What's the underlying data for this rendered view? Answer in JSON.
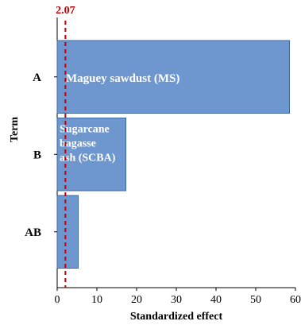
{
  "chart_data": {
    "type": "bar",
    "orientation": "horizontal",
    "categories": [
      "A",
      "B",
      "AB"
    ],
    "values": [
      58.5,
      17.3,
      5.3
    ],
    "bar_labels": [
      "Maguey sawdust (MS)",
      "Sugarcane bagasse ash (SCBA)",
      ""
    ],
    "xlabel": "Standardized effect",
    "ylabel": "Term",
    "xlim": [
      0,
      60
    ],
    "xticks": [
      "0",
      "10",
      "20",
      "30",
      "40",
      "50",
      "60"
    ],
    "reference_line": {
      "value": 2.07,
      "label": "2.07",
      "color": "#c00000",
      "style": "dashed"
    },
    "bar_color": "#6f97cf",
    "bar_edge_color": "#3d6aa6",
    "grid": false
  }
}
